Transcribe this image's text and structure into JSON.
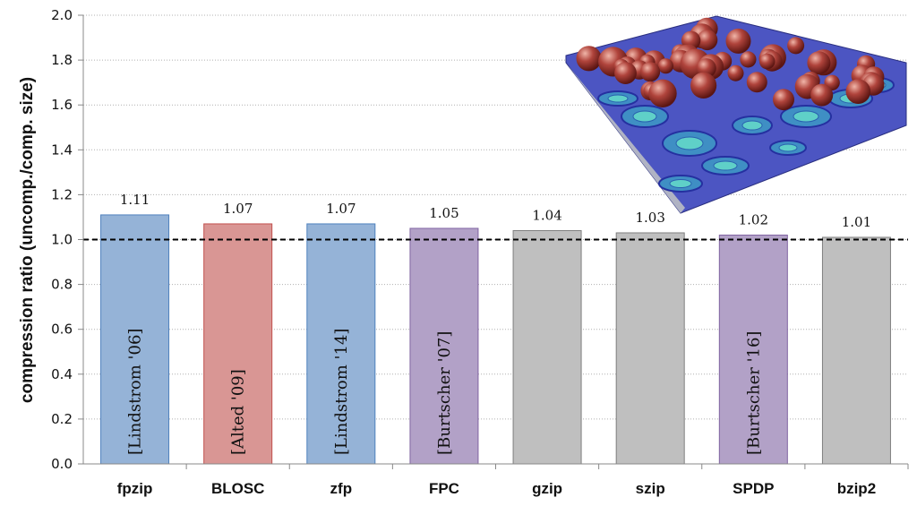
{
  "chart_data": {
    "type": "bar",
    "ylabel": "compression ratio (uncomp./comp. size)",
    "xlabel": "",
    "ylim": [
      0,
      2.0
    ],
    "yticks": [
      "0.0",
      "0.2",
      "0.4",
      "0.6",
      "0.8",
      "1.0",
      "1.2",
      "1.4",
      "1.6",
      "1.8",
      "2.0"
    ],
    "reference_line": 1.0,
    "grid": "horizontal dotted",
    "categories": [
      "fpzip",
      "BLOSC",
      "zfp",
      "FPC",
      "gzip",
      "szip",
      "SPDP",
      "bzip2"
    ],
    "values": [
      1.11,
      1.07,
      1.07,
      1.05,
      1.04,
      1.03,
      1.02,
      1.01
    ],
    "value_labels": [
      "1.11",
      "1.07",
      "1.07",
      "1.05",
      "1.04",
      "1.03",
      "1.02",
      "1.01"
    ],
    "bar_references": [
      "[Lindstrom '06]",
      "[Alted '09]",
      "[Lindstrom '14]",
      "[Burtscher '07]",
      "",
      "",
      "[Burtscher '16]",
      ""
    ],
    "bar_colors": [
      "#95b3d7",
      "#d99694",
      "#95b3d7",
      "#b2a1c7",
      "#bfbfbf",
      "#bfbfbf",
      "#b2a1c7",
      "#bfbfbf"
    ],
    "bar_borders": [
      "#4f81bd",
      "#c0504d",
      "#4f81bd",
      "#8064a2",
      "#7f7f7f",
      "#7f7f7f",
      "#8064a2",
      "#7f7f7f"
    ]
  }
}
